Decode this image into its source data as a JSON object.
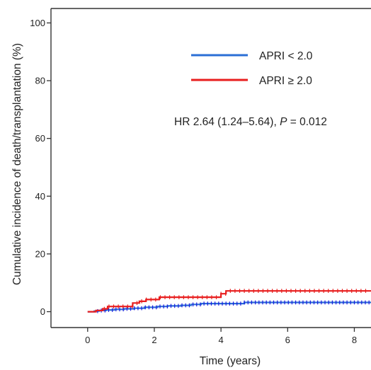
{
  "chart_data": {
    "type": "line",
    "title": "",
    "xlabel": "Time (years)",
    "ylabel": "Cumulative incidence of death/transplantation (%)",
    "xlim": [
      -1.1,
      8.5
    ],
    "ylim": [
      -5.5,
      105
    ],
    "xticks": [
      0,
      2,
      4,
      6,
      8
    ],
    "yticks": [
      0,
      20,
      40,
      60,
      80,
      100
    ],
    "legend_position": "top-right",
    "annotation": {
      "prefix": "HR 2.64 (1.24–5.64), ",
      "p_label": "P",
      "suffix": " = 0.012"
    },
    "series": [
      {
        "name": "APRI < 2.0",
        "color": "#2b6fd6",
        "censor_color": "#1a1ae0",
        "step": true,
        "x": [
          0,
          0.2,
          0.35,
          0.55,
          0.8,
          1.1,
          1.4,
          1.7,
          2.1,
          2.4,
          2.8,
          3.1,
          3.4,
          3.9,
          4.7,
          8.5
        ],
        "y": [
          0,
          0.2,
          0.4,
          0.6,
          0.8,
          1.0,
          1.2,
          1.5,
          1.8,
          2.0,
          2.2,
          2.5,
          2.8,
          2.8,
          3.2,
          3.2
        ]
      },
      {
        "name": "APRI ≥ 2.0",
        "color": "#e81e1e",
        "censor_color": "#e81e1e",
        "step": true,
        "x": [
          0,
          0.25,
          0.45,
          0.6,
          1.35,
          1.55,
          1.75,
          2.15,
          4.0,
          4.15,
          8.5
        ],
        "y": [
          0,
          0.4,
          1.0,
          1.8,
          3.0,
          3.6,
          4.2,
          5.0,
          6.2,
          7.2,
          7.2
        ]
      }
    ]
  }
}
